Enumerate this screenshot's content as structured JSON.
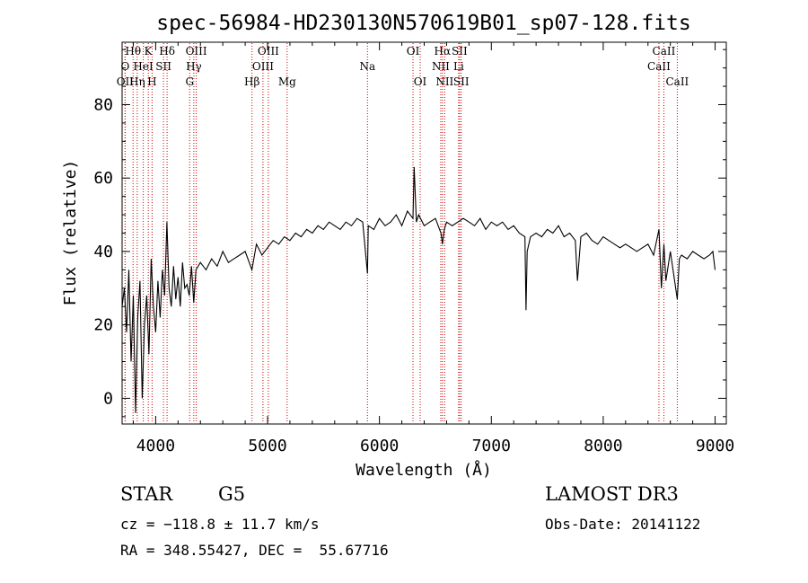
{
  "chart_data": {
    "type": "line",
    "title": "spec-56984-HD230130N570619B01_sp07-128.fits",
    "xlabel": "Wavelength (Å)",
    "ylabel": "Flux (relative)",
    "xlim": [
      3700,
      9100
    ],
    "ylim": [
      -7,
      97
    ],
    "xticks": [
      4000,
      5000,
      6000,
      7000,
      8000,
      9000
    ],
    "yticks": [
      0,
      20,
      40,
      60,
      80
    ],
    "series": [
      {
        "name": "flux",
        "x": [
          3700,
          3720,
          3740,
          3760,
          3780,
          3800,
          3820,
          3840,
          3860,
          3880,
          3900,
          3920,
          3940,
          3960,
          3980,
          4000,
          4020,
          4040,
          4060,
          4080,
          4100,
          4120,
          4140,
          4160,
          4180,
          4200,
          4220,
          4240,
          4260,
          4280,
          4300,
          4320,
          4340,
          4360,
          4400,
          4450,
          4500,
          4550,
          4600,
          4650,
          4700,
          4750,
          4800,
          4860,
          4900,
          4950,
          5000,
          5050,
          5100,
          5150,
          5200,
          5250,
          5300,
          5350,
          5400,
          5450,
          5500,
          5550,
          5600,
          5650,
          5700,
          5750,
          5800,
          5850,
          5893,
          5900,
          5950,
          6000,
          6050,
          6100,
          6150,
          6200,
          6250,
          6300,
          6310,
          6330,
          6350,
          6400,
          6450,
          6500,
          6550,
          6563,
          6580,
          6600,
          6650,
          6700,
          6750,
          6800,
          6850,
          6900,
          6950,
          7000,
          7050,
          7100,
          7150,
          7200,
          7250,
          7300,
          7310,
          7320,
          7350,
          7400,
          7450,
          7500,
          7550,
          7600,
          7650,
          7700,
          7750,
          7770,
          7800,
          7850,
          7900,
          7950,
          8000,
          8050,
          8100,
          8150,
          8200,
          8250,
          8300,
          8350,
          8400,
          8450,
          8498,
          8520,
          8542,
          8560,
          8600,
          8662,
          8680,
          8700,
          8750,
          8800,
          8850,
          8900,
          8950,
          8980,
          9000
        ],
        "values": [
          25,
          30,
          18,
          35,
          10,
          28,
          -4,
          22,
          32,
          0,
          20,
          28,
          12,
          38,
          25,
          18,
          32,
          22,
          35,
          28,
          48,
          30,
          25,
          36,
          27,
          33,
          25,
          37,
          30,
          31,
          28,
          36,
          26,
          35,
          37,
          35,
          38,
          36,
          40,
          37,
          38,
          39,
          40,
          35,
          42,
          39,
          41,
          43,
          42,
          44,
          43,
          45,
          44,
          46,
          45,
          47,
          46,
          48,
          47,
          46,
          48,
          47,
          49,
          48,
          34,
          47,
          46,
          49,
          47,
          48,
          50,
          47,
          51,
          49,
          63,
          48,
          50,
          47,
          48,
          49,
          45,
          42,
          46,
          48,
          47,
          48,
          49,
          48,
          47,
          49,
          46,
          48,
          47,
          48,
          46,
          47,
          45,
          44,
          24,
          40,
          44,
          45,
          44,
          46,
          45,
          47,
          44,
          45,
          43,
          32,
          44,
          45,
          43,
          42,
          44,
          43,
          42,
          41,
          42,
          41,
          40,
          41,
          42,
          39,
          46,
          30,
          42,
          32,
          40,
          27,
          38,
          39,
          38,
          40,
          39,
          38,
          39,
          40,
          35
        ]
      }
    ],
    "lines": [
      {
        "label": "Hθ",
        "x": 3798,
        "row": 0
      },
      {
        "label": "O",
        "x": 3727,
        "row": 1
      },
      {
        "label": "OII",
        "x": 3727,
        "row": 2
      },
      {
        "label": "Hη",
        "x": 3835,
        "row": 2
      },
      {
        "label": "K",
        "x": 3934,
        "row": 0
      },
      {
        "label": "HeI",
        "x": 3889,
        "row": 1
      },
      {
        "label": "H",
        "x": 3968,
        "row": 2
      },
      {
        "label": "SII",
        "x": 4070,
        "row": 1
      },
      {
        "label": "Hδ",
        "x": 4102,
        "row": 0
      },
      {
        "label": "OIII",
        "x": 4363,
        "row": 0
      },
      {
        "label": "Hγ",
        "x": 4341,
        "row": 1
      },
      {
        "label": "G",
        "x": 4304,
        "row": 2
      },
      {
        "label": "OIII",
        "x": 5007,
        "row": 0
      },
      {
        "label": "OIII",
        "x": 4959,
        "row": 1
      },
      {
        "label": "Hβ",
        "x": 4861,
        "row": 2
      },
      {
        "label": "Mg",
        "x": 5175,
        "row": 2
      },
      {
        "label": "Na",
        "x": 5893,
        "row": 1
      },
      {
        "label": "OI",
        "x": 6300,
        "row": 0
      },
      {
        "label": "OI",
        "x": 6364,
        "row": 2
      },
      {
        "label": "Hα",
        "x": 6563,
        "row": 0
      },
      {
        "label": "NII",
        "x": 6548,
        "row": 1
      },
      {
        "label": "NII",
        "x": 6583,
        "row": 2
      },
      {
        "label": "SII",
        "x": 6716,
        "row": 0
      },
      {
        "label": "Li",
        "x": 6708,
        "row": 1
      },
      {
        "label": "SII",
        "x": 6731,
        "row": 2
      },
      {
        "label": "CaII",
        "x": 8542,
        "row": 0
      },
      {
        "label": "CaII",
        "x": 8498,
        "row": 1
      },
      {
        "label": "CaII",
        "x": 8662,
        "row": 2
      }
    ]
  },
  "info": {
    "class": "STAR",
    "subclass": "G5",
    "survey": "LAMOST DR3",
    "cz": "cz = −118.8 ± 11.7 km/s",
    "obs_date": "Obs-Date: 20141122",
    "radec": "RA = 348.55427, DEC =  55.67716"
  }
}
